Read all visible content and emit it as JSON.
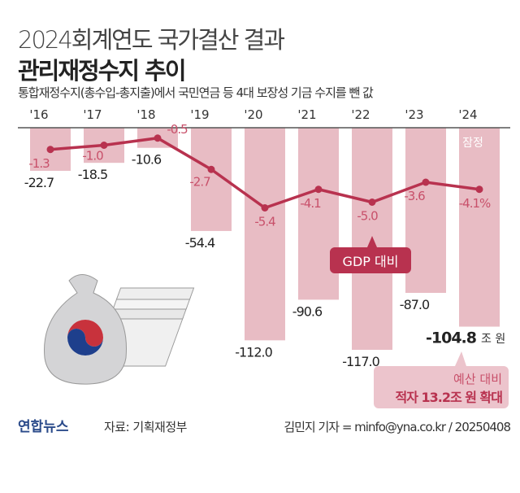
{
  "title": "2024회계연도 국가결산 결과",
  "headline": "관리재정수지 추이",
  "subtitle": "통합재정수지(총수입-총지출)에서 국민연금 등 4대 보장성 기금 수지를 뺀 값",
  "chart_data": {
    "type": "bar",
    "categories": [
      "'16",
      "'17",
      "'18",
      "'19",
      "'20",
      "'21",
      "'22",
      "'23",
      "'24"
    ],
    "series": [
      {
        "values": [
          -22.7,
          -18.5,
          -10.6,
          -54.4,
          -112.0,
          -90.6,
          -117.0,
          -87.0,
          -104.8
        ],
        "labels": [
          "-22.7",
          "-18.5",
          "-10.6",
          "-54.4",
          "-112.0",
          "-90.6",
          "-117.0",
          "-87.0",
          "-104.8"
        ],
        "unit": "조 원",
        "type": "bar"
      },
      {
        "name": "GDP 대비",
        "values": [
          -1.3,
          -1.0,
          -0.5,
          -2.7,
          -5.4,
          -4.1,
          -5.0,
          -3.6,
          -4.1
        ],
        "labels": [
          "-1.3",
          "-1.0",
          "-0.5",
          "-2.7",
          "-5.4",
          "-4.1",
          "-5.0",
          "-3.6",
          "-4.1%"
        ],
        "type": "line"
      }
    ],
    "annotations": {
      "provisional": "잠정",
      "callout_line1": "예산 대비",
      "callout_line2": "적자 13.2조 원 확대"
    },
    "colors": {
      "bar": "#e8bcc4",
      "line": "#b8324f",
      "label": "#c8506a"
    }
  },
  "source": "자료: 기획재정부",
  "logo": "연합뉴스",
  "credit": "김민지 기자 = minfo@yna.co.kr / 20250408"
}
